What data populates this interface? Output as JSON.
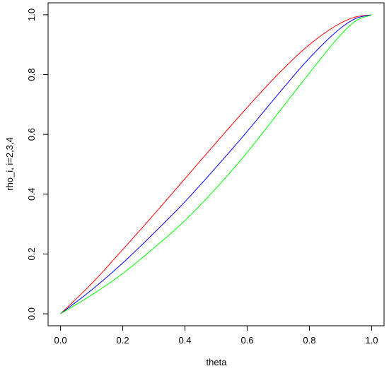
{
  "chart_data": {
    "type": "line",
    "title": "",
    "xlabel": "theta",
    "ylabel": "rho_i, i=2,3,4",
    "xlim": [
      -0.04,
      1.04
    ],
    "ylim": [
      -0.04,
      1.04
    ],
    "x_ticks": [
      "0.0",
      "0.2",
      "0.4",
      "0.6",
      "0.8",
      "1.0"
    ],
    "y_ticks": [
      "0.0",
      "0.2",
      "0.4",
      "0.6",
      "0.8",
      "1.0"
    ],
    "grid": false,
    "legend": "none",
    "x": [
      0.0,
      0.1,
      0.2,
      0.3,
      0.4,
      0.5,
      0.6,
      0.7,
      0.8,
      0.9,
      0.95,
      1.0
    ],
    "series": [
      {
        "color": "#ff0000",
        "values": [
          0.0,
          0.101,
          0.215,
          0.332,
          0.452,
          0.572,
          0.69,
          0.802,
          0.9,
          0.972,
          0.993,
          1.0
        ]
      },
      {
        "color": "#0000ff",
        "values": [
          0.0,
          0.08,
          0.17,
          0.27,
          0.375,
          0.49,
          0.61,
          0.735,
          0.855,
          0.955,
          0.988,
          1.0
        ]
      },
      {
        "color": "#00ff00",
        "values": [
          0.0,
          0.063,
          0.135,
          0.22,
          0.312,
          0.42,
          0.54,
          0.672,
          0.805,
          0.932,
          0.98,
          1.0
        ]
      }
    ]
  }
}
